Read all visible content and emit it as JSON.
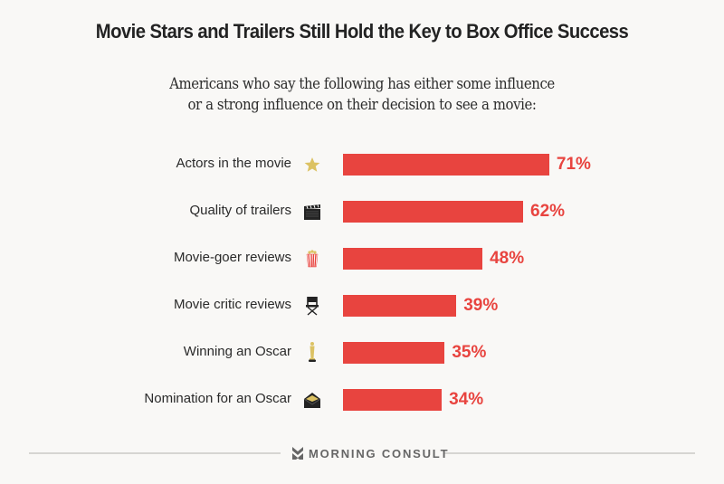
{
  "header": {
    "title": "Movie Stars and Trailers Still Hold the Key to Box Office Success",
    "subtitle_line1": "Americans who say the following has either some influence",
    "subtitle_line2": "or a strong influence on their decision to see a movie:"
  },
  "chart_data": {
    "type": "bar",
    "orientation": "horizontal",
    "title": "Movie Stars and Trailers Still Hold the Key to Box Office Success",
    "subtitle": "Americans who say the following has either some influence or a strong influence on their decision to see a movie:",
    "xlabel": "",
    "ylabel": "",
    "unit": "%",
    "xlim": [
      0,
      100
    ],
    "grid": false,
    "categories": [
      "Actors in the movie",
      "Quality of trailers",
      "Movie-goer reviews",
      "Movie critic reviews",
      "Winning an Oscar",
      "Nomination for an Oscar"
    ],
    "values": [
      71,
      62,
      48,
      39,
      35,
      34
    ],
    "value_labels": [
      "71%",
      "62%",
      "48%",
      "39%",
      "35%",
      "34%"
    ],
    "icons": [
      "star-icon",
      "clapperboard-icon",
      "popcorn-icon",
      "director-chair-icon",
      "oscar-statuette-icon",
      "envelope-icon"
    ],
    "bar_color": "#e8443f"
  },
  "footer": {
    "brand": "MORNING CONSULT",
    "brand_icon": "morning-consult-logo-icon"
  },
  "colors": {
    "background": "#f9f8f6",
    "accent": "#e8443f",
    "gold": "#dcc263",
    "dark": "#232323"
  }
}
